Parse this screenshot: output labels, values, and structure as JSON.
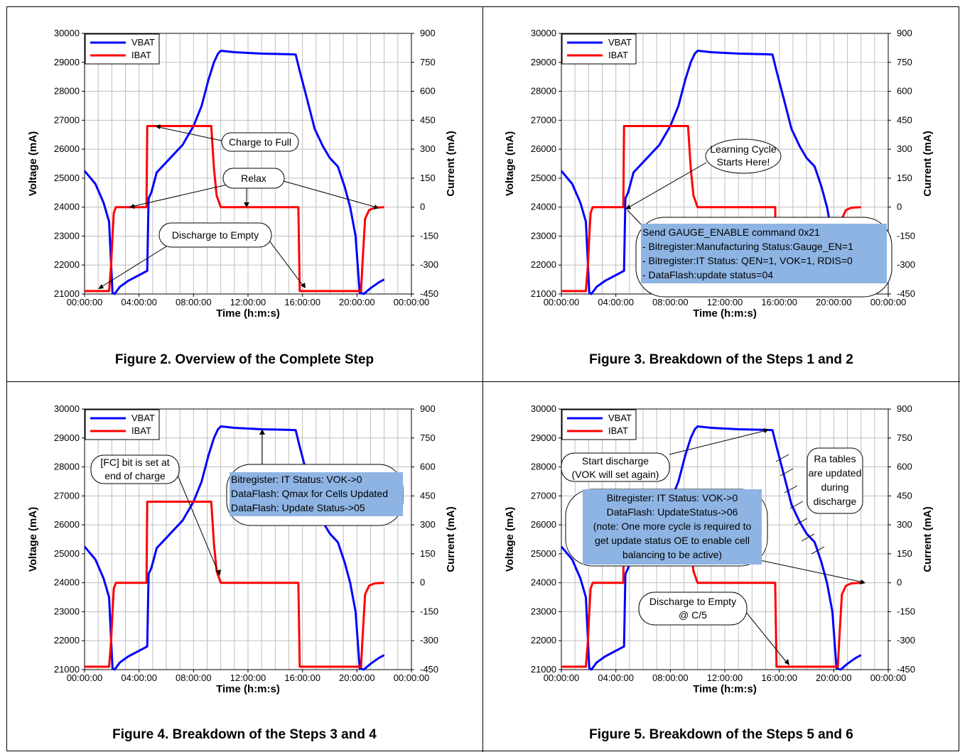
{
  "chart_data": [
    {
      "id": "fig2",
      "type": "line",
      "caption": "Figure 2. Overview of the Complete Step",
      "xlabel": "Time (h:m:s)",
      "ylabel": "Voltage (mA)",
      "y2label": "Current (mA)",
      "xticks": [
        "00:00:00",
        "04:00:00",
        "08:00:00",
        "12:00:00",
        "16:00:00",
        "20:00:00",
        "00:00:00"
      ],
      "xlim": [
        0,
        24
      ],
      "ylim": [
        21000,
        30000
      ],
      "y2lim": [
        -450,
        900
      ],
      "yticks": [
        21000,
        22000,
        23000,
        24000,
        25000,
        26000,
        27000,
        28000,
        29000,
        30000
      ],
      "y2ticks": [
        -450,
        -300,
        -150,
        0,
        150,
        300,
        450,
        600,
        750,
        900
      ],
      "grid": true,
      "legend": "top-left",
      "series": [
        {
          "name": "VBAT",
          "color": "#0000ff",
          "axis": "left",
          "x": [
            0,
            0.8,
            1.4,
            1.8,
            2.05,
            2.2,
            2.6,
            3.2,
            3.8,
            4.4,
            4.6,
            4.7,
            4.9,
            5.3,
            5.7,
            6.3,
            7.2,
            8.0,
            8.6,
            9.1,
            9.5,
            9.8,
            10.0,
            10.4,
            11.0,
            13.0,
            15.0,
            15.5,
            15.8,
            16.3,
            16.9,
            17.5,
            18.0,
            18.6,
            19.1,
            19.5,
            19.9,
            20.2,
            20.5,
            21.0,
            21.6,
            22.0
          ],
          "values": [
            25250,
            24800,
            24150,
            23500,
            21050,
            21000,
            21250,
            21450,
            21600,
            21750,
            21800,
            24300,
            24500,
            25200,
            25400,
            25700,
            26150,
            26800,
            27500,
            28400,
            29000,
            29300,
            29400,
            29380,
            29350,
            29300,
            29280,
            29270,
            28700,
            27800,
            26700,
            26100,
            25700,
            25400,
            24700,
            24000,
            23000,
            21050,
            21000,
            21200,
            21400,
            21500
          ]
        },
        {
          "name": "IBAT",
          "color": "#ff0000",
          "axis": "right",
          "x": [
            0,
            1.8,
            1.95,
            2.05,
            2.15,
            2.3,
            4.55,
            4.6,
            9.3,
            9.5,
            9.7,
            10.0,
            15.7,
            15.8,
            20.3,
            20.4,
            20.6,
            20.9,
            21.3,
            22.0
          ],
          "values": [
            -435,
            -435,
            -300,
            -150,
            -30,
            0,
            0,
            420,
            420,
            200,
            60,
            0,
            0,
            -435,
            -435,
            -300,
            -60,
            -15,
            -3,
            0
          ]
        }
      ],
      "annotations": [
        "Charge to Full",
        "Relax",
        "Discharge to Empty"
      ]
    },
    {
      "id": "fig3",
      "type": "line",
      "caption": "Figure 3. Breakdown of the Steps 1 and 2",
      "xlabel": "Time (h:m:s)",
      "ylabel": "Voltage (mA)",
      "y2label": "Current (mA)",
      "xticks": [
        "00:00:00",
        "04:00:00",
        "08:00:00",
        "12:00:00",
        "16:00:00",
        "20:00:00",
        "00:00:00"
      ],
      "xlim": [
        0,
        24
      ],
      "ylim": [
        21000,
        30000
      ],
      "y2lim": [
        -450,
        900
      ],
      "yticks": [
        21000,
        22000,
        23000,
        24000,
        25000,
        26000,
        27000,
        28000,
        29000,
        30000
      ],
      "y2ticks": [
        -450,
        -300,
        -150,
        0,
        150,
        300,
        450,
        600,
        750,
        900
      ],
      "grid": true,
      "legend": "top-left",
      "series": [
        {
          "name": "VBAT",
          "color": "#0000ff",
          "axis": "left",
          "x": [
            0,
            0.8,
            1.4,
            1.8,
            2.05,
            2.2,
            2.6,
            3.2,
            3.8,
            4.4,
            4.6,
            4.7,
            4.9,
            5.3,
            5.7,
            6.3,
            7.2,
            8.0,
            8.6,
            9.1,
            9.5,
            9.8,
            10.0,
            10.4,
            11.0,
            13.0,
            15.0,
            15.5,
            15.8,
            16.3,
            16.9,
            17.5,
            18.0,
            18.6,
            19.1,
            19.5,
            19.9,
            20.2,
            20.5,
            21.0,
            21.6,
            22.0
          ],
          "values": [
            25250,
            24800,
            24150,
            23500,
            21050,
            21000,
            21250,
            21450,
            21600,
            21750,
            21800,
            24300,
            24500,
            25200,
            25400,
            25700,
            26150,
            26800,
            27500,
            28400,
            29000,
            29300,
            29400,
            29380,
            29350,
            29300,
            29280,
            29270,
            28700,
            27800,
            26700,
            26100,
            25700,
            25400,
            24700,
            24000,
            23000,
            21050,
            21000,
            21200,
            21400,
            21500
          ]
        },
        {
          "name": "IBAT",
          "color": "#ff0000",
          "axis": "right",
          "x": [
            0,
            1.8,
            1.95,
            2.05,
            2.15,
            2.3,
            4.55,
            4.6,
            9.3,
            9.5,
            9.7,
            10.0,
            15.7,
            15.8,
            20.3,
            20.4,
            20.6,
            20.9,
            21.3,
            22.0
          ],
          "values": [
            -435,
            -435,
            -300,
            -150,
            -30,
            0,
            0,
            420,
            420,
            200,
            60,
            0,
            0,
            -435,
            -435,
            -300,
            -60,
            -15,
            -3,
            0
          ]
        }
      ],
      "annotations": [
        "Learning Cycle",
        "Starts Here!",
        "Send GAUGE_ENABLE command 0x21",
        "- Bitregister:Manufacturing Status:Gauge_EN=1",
        "- Bitregister:IT Status: QEN=1, VOK=1, RDIS=0",
        "- DataFlash:update status=04"
      ]
    },
    {
      "id": "fig4",
      "type": "line",
      "caption": "Figure 4. Breakdown of the Steps 3 and 4",
      "xlabel": "Time (h:m:s)",
      "ylabel": "Voltage (mA)",
      "y2label": "Current (mA)",
      "xticks": [
        "00:00:00",
        "04:00:00",
        "08:00:00",
        "12:00:00",
        "16:00:00",
        "20:00:00",
        "00:00:00"
      ],
      "xlim": [
        0,
        24
      ],
      "ylim": [
        21000,
        30000
      ],
      "y2lim": [
        -450,
        900
      ],
      "yticks": [
        21000,
        22000,
        23000,
        24000,
        25000,
        26000,
        27000,
        28000,
        29000,
        30000
      ],
      "y2ticks": [
        -450,
        -300,
        -150,
        0,
        150,
        300,
        450,
        600,
        750,
        900
      ],
      "grid": true,
      "legend": "top-left",
      "series": [
        {
          "name": "VBAT",
          "color": "#0000ff",
          "axis": "left",
          "x": [
            0,
            0.8,
            1.4,
            1.8,
            2.05,
            2.2,
            2.6,
            3.2,
            3.8,
            4.4,
            4.6,
            4.7,
            4.9,
            5.3,
            5.7,
            6.3,
            7.2,
            8.0,
            8.6,
            9.1,
            9.5,
            9.8,
            10.0,
            10.4,
            11.0,
            13.0,
            15.0,
            15.5,
            15.8,
            16.3,
            16.9,
            17.5,
            18.0,
            18.6,
            19.1,
            19.5,
            19.9,
            20.2,
            20.5,
            21.0,
            21.6,
            22.0
          ],
          "values": [
            25250,
            24800,
            24150,
            23500,
            21050,
            21000,
            21250,
            21450,
            21600,
            21750,
            21800,
            24300,
            24500,
            25200,
            25400,
            25700,
            26150,
            26800,
            27500,
            28400,
            29000,
            29300,
            29400,
            29380,
            29350,
            29300,
            29280,
            29270,
            28700,
            27800,
            26700,
            26100,
            25700,
            25400,
            24700,
            24000,
            23000,
            21050,
            21000,
            21200,
            21400,
            21500
          ]
        },
        {
          "name": "IBAT",
          "color": "#ff0000",
          "axis": "right",
          "x": [
            0,
            1.8,
            1.95,
            2.05,
            2.15,
            2.3,
            4.55,
            4.6,
            9.3,
            9.5,
            9.7,
            10.0,
            15.7,
            15.8,
            20.3,
            20.4,
            20.6,
            20.9,
            21.3,
            22.0
          ],
          "values": [
            -435,
            -435,
            -300,
            -150,
            -30,
            0,
            0,
            420,
            420,
            200,
            60,
            0,
            0,
            -435,
            -435,
            -300,
            -60,
            -15,
            -3,
            0
          ]
        }
      ],
      "annotations": [
        "[FC] bit is set at",
        "end of charge",
        "Bitregister: IT Status: VOK->0",
        "DataFlash: Qmax for Cells Updated",
        "DataFlash: Update Status->05"
      ]
    },
    {
      "id": "fig5",
      "type": "line",
      "caption": "Figure 5. Breakdown of the Steps 5 and 6",
      "xlabel": "Time (h:m:s)",
      "ylabel": "Voltage (mA)",
      "y2label": "Current (mA)",
      "xticks": [
        "00:00:00",
        "04:00:00",
        "08:00:00",
        "12:00:00",
        "16:00:00",
        "20:00:00",
        "00:00:00"
      ],
      "xlim": [
        0,
        24
      ],
      "ylim": [
        21000,
        30000
      ],
      "y2lim": [
        -450,
        900
      ],
      "yticks": [
        21000,
        22000,
        23000,
        24000,
        25000,
        26000,
        27000,
        28000,
        29000,
        30000
      ],
      "y2ticks": [
        -450,
        -300,
        -150,
        0,
        150,
        300,
        450,
        600,
        750,
        900
      ],
      "grid": true,
      "legend": "top-left",
      "series": [
        {
          "name": "VBAT",
          "color": "#0000ff",
          "axis": "left",
          "x": [
            0,
            0.8,
            1.4,
            1.8,
            2.05,
            2.2,
            2.6,
            3.2,
            3.8,
            4.4,
            4.6,
            4.7,
            4.9,
            5.3,
            5.7,
            6.3,
            7.2,
            8.0,
            8.6,
            9.1,
            9.5,
            9.8,
            10.0,
            10.4,
            11.0,
            13.0,
            15.0,
            15.5,
            15.8,
            16.3,
            16.9,
            17.5,
            18.0,
            18.6,
            19.1,
            19.5,
            19.9,
            20.2,
            20.5,
            21.0,
            21.6,
            22.0
          ],
          "values": [
            25250,
            24800,
            24150,
            23500,
            21050,
            21000,
            21250,
            21450,
            21600,
            21750,
            21800,
            24300,
            24500,
            25200,
            25400,
            25700,
            26150,
            26800,
            27500,
            28400,
            29000,
            29300,
            29400,
            29380,
            29350,
            29300,
            29280,
            29270,
            28700,
            27800,
            26700,
            26100,
            25700,
            25400,
            24700,
            24000,
            23000,
            21050,
            21000,
            21200,
            21400,
            21500
          ]
        },
        {
          "name": "IBAT",
          "color": "#ff0000",
          "axis": "right",
          "x": [
            0,
            1.8,
            1.95,
            2.05,
            2.15,
            2.3,
            4.55,
            4.6,
            9.3,
            9.5,
            9.7,
            10.0,
            15.7,
            15.8,
            20.3,
            20.4,
            20.6,
            20.9,
            21.3,
            22.0
          ],
          "values": [
            -435,
            -435,
            -300,
            -150,
            -30,
            0,
            0,
            420,
            420,
            200,
            60,
            0,
            0,
            -435,
            -435,
            -300,
            -60,
            -15,
            -3,
            0
          ]
        }
      ],
      "annotations": [
        "Start discharge",
        "(VOK will set again)",
        "Ra tables",
        "are updated",
        "during",
        "discharge",
        "Bitregister: IT Status: VOK->0",
        "DataFlash: UpdateStatus->06",
        "(note: One more cycle is required to",
        "get update status OE to enable cell",
        "balancing to be active)",
        "Discharge to Empty",
        "@ C/5"
      ]
    }
  ],
  "colors": {
    "vbat": "#0000ff",
    "ibat": "#ff0000",
    "grid": "#bfbfbf",
    "highlight": "#8eb4e3"
  }
}
